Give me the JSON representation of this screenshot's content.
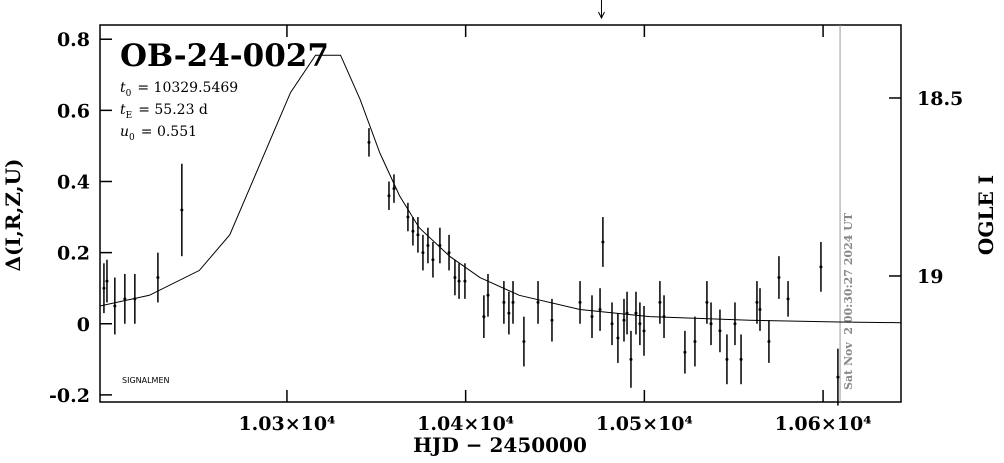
{
  "chart_data": {
    "type": "scatter",
    "title": "OB-24-0027",
    "params": [
      {
        "name": "t",
        "sub": "0",
        "text": "= 10329.5469"
      },
      {
        "name": "t",
        "sub": "E",
        "text": "= 55.23 d"
      },
      {
        "name": "u",
        "sub": "0",
        "text": "= 0.551"
      }
    ],
    "credit": "SIGNALMEN",
    "timestamp": "Sat Nov  2 00:30:27 2024 UT",
    "x_label": "HJD − 2450000",
    "y_label": "Δ(I,R,Z,U)",
    "y2_label": "OGLE I",
    "xlim": [
      10195.4,
      10643.6
    ],
    "xticks": [
      {
        "value": 10300,
        "label": "1.03×10⁴"
      },
      {
        "value": 10400,
        "label": "1.04×10⁴"
      },
      {
        "value": 10500,
        "label": "1.05×10⁴"
      },
      {
        "value": 10600,
        "label": "1.06×10⁴"
      }
    ],
    "ylim": [
      -0.22,
      0.84
    ],
    "yticks": [
      -0.2,
      0,
      0.2,
      0.4,
      0.6,
      0.8
    ],
    "y2lim": [
      19.354,
      18.295
    ],
    "y2ticks": [
      18.5,
      19
    ],
    "now_line_x": 10609.5,
    "arrow_x": 10476,
    "series": [
      {
        "color": "#000000",
        "x": [
          10197.6,
          10199.3,
          10203.7,
          10209.3,
          10214.9,
          10227.8,
          10241.2,
          10345.9,
          10357.1,
          10359.9,
          10367.7,
          10370.5,
          10373.3,
          10376.1,
          10378.9,
          10381.7,
          10385.6,
          10390.7,
          10394.0,
          10396.3,
          10399.6,
          10410.2,
          10412.5,
          10421.4,
          10424.2,
          10426.5,
          10432.6,
          10440.5,
          10448.3,
          10464.0,
          10470.7,
          10475.2,
          10476.8,
          10481.9,
          10485.2,
          10488.6,
          10490.3,
          10492.5,
          10495.3,
          10497.5,
          10499.8,
          10508.7,
          10511.0,
          10522.7,
          10528.3,
          10535.0,
          10537.3,
          10542.3,
          10546.2,
          10550.7,
          10554.1,
          10563.0,
          10564.7,
          10569.7,
          10575.3,
          10580.4,
          10598.8,
          10608.3
        ],
        "values": [
          0.1,
          0.12,
          0.05,
          0.07,
          0.07,
          0.13,
          0.32,
          0.51,
          0.36,
          0.38,
          0.3,
          0.26,
          0.25,
          0.2,
          0.22,
          0.18,
          0.22,
          0.2,
          0.13,
          0.12,
          0.12,
          0.02,
          0.08,
          0.06,
          0.03,
          0.06,
          -0.05,
          0.06,
          0.01,
          0.06,
          0.02,
          0.04,
          0.23,
          0.0,
          -0.04,
          0.01,
          0.03,
          -0.1,
          0.03,
          0.0,
          -0.02,
          0.06,
          0.02,
          -0.08,
          -0.05,
          0.06,
          0.0,
          -0.02,
          -0.1,
          0.0,
          -0.1,
          0.06,
          0.04,
          -0.05,
          0.13,
          0.07,
          0.16,
          -0.15
        ],
        "errors": [
          0.07,
          0.06,
          0.08,
          0.07,
          0.07,
          0.07,
          0.13,
          0.04,
          0.04,
          0.04,
          0.04,
          0.04,
          0.05,
          0.05,
          0.05,
          0.05,
          0.05,
          0.05,
          0.05,
          0.05,
          0.05,
          0.06,
          0.06,
          0.06,
          0.06,
          0.06,
          0.07,
          0.06,
          0.06,
          0.06,
          0.06,
          0.06,
          0.07,
          0.06,
          0.07,
          0.06,
          0.06,
          0.08,
          0.06,
          0.06,
          0.07,
          0.06,
          0.06,
          0.06,
          0.07,
          0.06,
          0.06,
          0.06,
          0.07,
          0.06,
          0.07,
          0.06,
          0.06,
          0.06,
          0.06,
          0.05,
          0.07,
          0.08
        ]
      }
    ],
    "model": {
      "color": "#000000",
      "x": [
        10195.4,
        10223,
        10251,
        10268,
        10285,
        10302,
        10316,
        10330,
        10341,
        10352,
        10363,
        10374,
        10391,
        10408,
        10430,
        10464,
        10503,
        10559,
        10609,
        10643.6
      ],
      "values": [
        0.05,
        0.08,
        0.15,
        0.25,
        0.45,
        0.65,
        0.755,
        0.755,
        0.63,
        0.48,
        0.36,
        0.27,
        0.19,
        0.13,
        0.08,
        0.04,
        0.02,
        0.01,
        0.005,
        0.003
      ]
    }
  }
}
